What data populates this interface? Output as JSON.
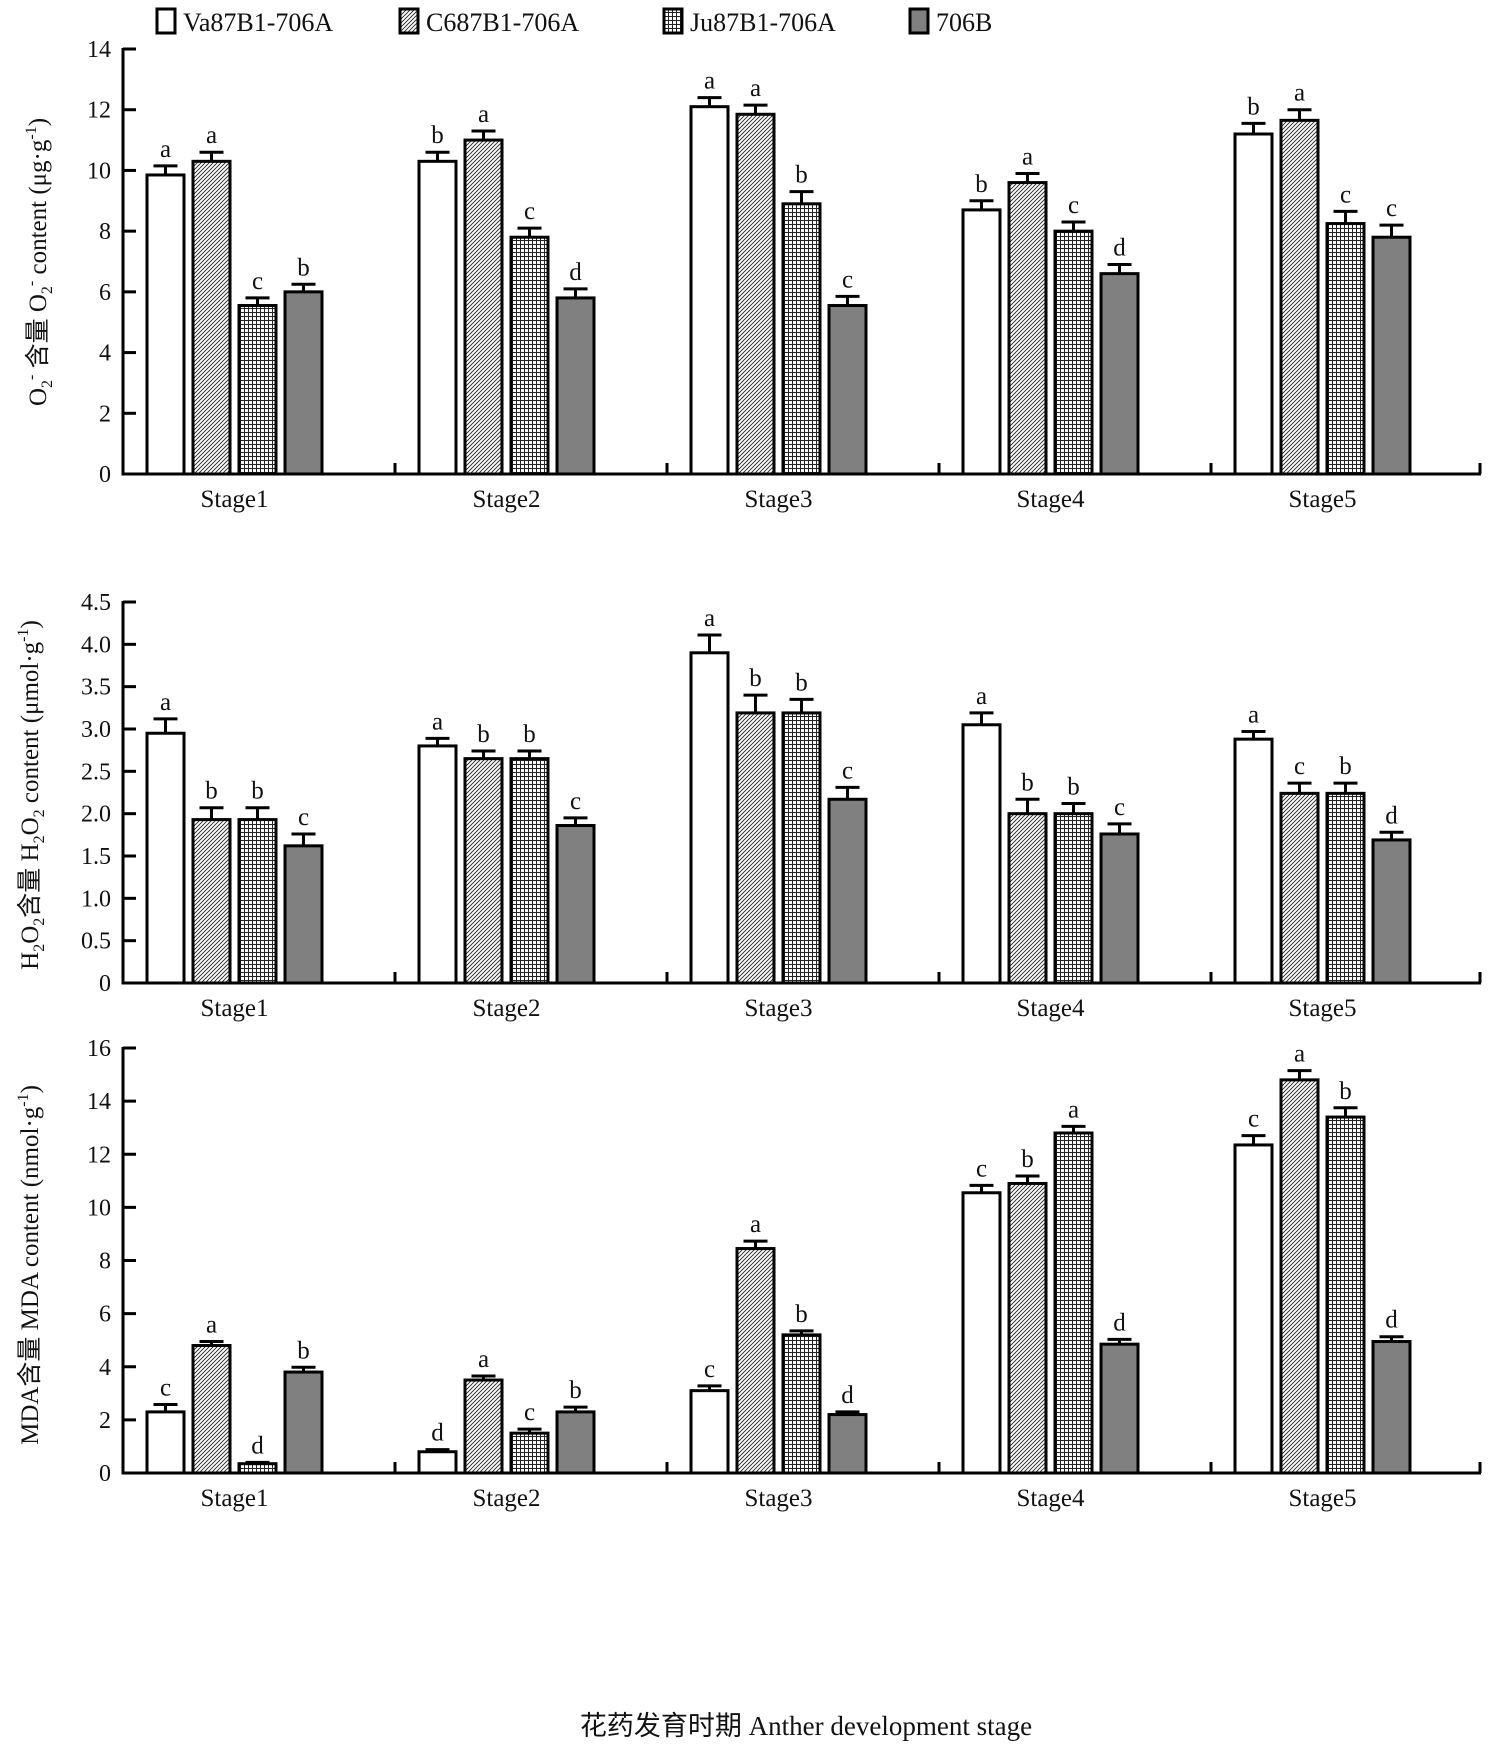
{
  "legend": [
    {
      "label": "Va87B1-706A",
      "pattern": "white"
    },
    {
      "label": "C687B1-706A",
      "pattern": "diagonal-hatch"
    },
    {
      "label": "Ju87B1-706A",
      "pattern": "grid"
    },
    {
      "label": "706B",
      "pattern": "gray",
      "color": "#808080"
    }
  ],
  "x_axis_title": "花药发育时期 Anther development stage",
  "chart_data": [
    {
      "type": "bar",
      "title": "",
      "ylabel": "O2- 含量 O2- content (μg·g-1)",
      "ylabel_parts": {
        "prefix": "O",
        "sub1": "2",
        "sup1": "-",
        "cn": " 含量 O",
        "sub2": "2",
        "sup2": "-",
        "rest": " content (μg·g",
        "sup3": "-1",
        "end": ")"
      },
      "ylim": [
        0,
        14
      ],
      "yticks": [
        0,
        2,
        4,
        6,
        8,
        10,
        12,
        14
      ],
      "ytick_labels": [
        "0",
        "2",
        "4",
        "6",
        "8",
        "10",
        "12",
        "14"
      ],
      "categories": [
        "Stage1",
        "Stage2",
        "Stage3",
        "Stage4",
        "Stage5"
      ],
      "series": [
        {
          "name": "Va87B1-706A",
          "values": [
            9.85,
            10.3,
            12.1,
            8.7,
            11.2
          ],
          "errors": [
            0.3,
            0.3,
            0.3,
            0.3,
            0.35
          ],
          "letters": [
            "a",
            "b",
            "a",
            "b",
            "b"
          ]
        },
        {
          "name": "C687B1-706A",
          "values": [
            10.3,
            11.0,
            11.85,
            9.6,
            11.65
          ],
          "errors": [
            0.3,
            0.3,
            0.3,
            0.3,
            0.35
          ],
          "letters": [
            "a",
            "a",
            "a",
            "a",
            "a"
          ]
        },
        {
          "name": "Ju87B1-706A",
          "values": [
            5.55,
            7.8,
            8.9,
            8.0,
            8.25
          ],
          "errors": [
            0.25,
            0.3,
            0.4,
            0.3,
            0.4
          ],
          "letters": [
            "c",
            "c",
            "b",
            "c",
            "c"
          ]
        },
        {
          "name": "706B",
          "values": [
            6.0,
            5.8,
            5.55,
            6.6,
            7.8
          ],
          "errors": [
            0.25,
            0.3,
            0.3,
            0.3,
            0.4
          ],
          "letters": [
            "b",
            "d",
            "c",
            "d",
            "c"
          ]
        }
      ]
    },
    {
      "type": "bar",
      "title": "",
      "ylabel": "H2O2 含量 H2O2 content (μmol·g-1)",
      "ylabel_parts": {
        "prefix": "H",
        "sub1": "2",
        "mid1": "O",
        "sub2": "2",
        "cn": "含量 H",
        "sub3": "2",
        "mid2": "O",
        "sub4": "2",
        "rest": " content (μmol·g",
        "sup": "-1",
        "end": ")"
      },
      "ylim": [
        0,
        4.5
      ],
      "yticks": [
        0,
        0.5,
        1.0,
        1.5,
        2.0,
        2.5,
        3.0,
        3.5,
        4.0,
        4.5
      ],
      "ytick_labels": [
        "0",
        "0.5",
        "1.0",
        "1.5",
        "2.0",
        "2.5",
        "3.0",
        "3.5",
        "4.0",
        "4.5"
      ],
      "categories": [
        "Stage1",
        "Stage2",
        "Stage3",
        "Stage4",
        "Stage5"
      ],
      "series": [
        {
          "name": "Va87B1-706A",
          "values": [
            2.95,
            2.8,
            3.9,
            3.05,
            2.88
          ],
          "errors": [
            0.17,
            0.09,
            0.21,
            0.14,
            0.09
          ],
          "letters": [
            "a",
            "a",
            "a",
            "a",
            "a"
          ]
        },
        {
          "name": "C687B1-706A",
          "values": [
            1.93,
            2.65,
            3.19,
            2.0,
            2.24
          ],
          "errors": [
            0.14,
            0.09,
            0.21,
            0.17,
            0.12
          ],
          "letters": [
            "b",
            "b",
            "b",
            "b",
            "c"
          ]
        },
        {
          "name": "Ju87B1-706A",
          "values": [
            1.93,
            2.65,
            3.19,
            2.0,
            2.24
          ],
          "errors": [
            0.14,
            0.09,
            0.16,
            0.12,
            0.12
          ],
          "letters": [
            "b",
            "b",
            "b",
            "b",
            "b"
          ]
        },
        {
          "name": "706B",
          "values": [
            1.62,
            1.86,
            2.17,
            1.76,
            1.69
          ],
          "errors": [
            0.14,
            0.09,
            0.14,
            0.12,
            0.09
          ],
          "letters": [
            "c",
            "c",
            "c",
            "c",
            "d"
          ]
        }
      ]
    },
    {
      "type": "bar",
      "title": "",
      "ylabel": "MDA含量 MDA content (nmol·g-1)",
      "ylabel_parts": {
        "text": "MDA含量 MDA content (nmol·g",
        "sup": "-1",
        "end": ")"
      },
      "ylim": [
        0,
        16
      ],
      "yticks": [
        0,
        2,
        4,
        6,
        8,
        10,
        12,
        14,
        16
      ],
      "ytick_labels": [
        "0",
        "2",
        "4",
        "6",
        "8",
        "10",
        "12",
        "14",
        "16"
      ],
      "categories": [
        "Stage1",
        "Stage2",
        "Stage3",
        "Stage4",
        "Stage5"
      ],
      "series": [
        {
          "name": "Va87B1-706A",
          "values": [
            2.3,
            0.8,
            3.1,
            10.55,
            12.35
          ],
          "errors": [
            0.28,
            0.08,
            0.18,
            0.28,
            0.35
          ],
          "letters": [
            "c",
            "d",
            "c",
            "c",
            "c"
          ]
        },
        {
          "name": "C687B1-706A",
          "values": [
            4.8,
            3.5,
            8.45,
            10.9,
            14.8
          ],
          "errors": [
            0.15,
            0.15,
            0.28,
            0.28,
            0.35
          ],
          "letters": [
            "a",
            "a",
            "a",
            "b",
            "a"
          ]
        },
        {
          "name": "Ju87B1-706A",
          "values": [
            0.35,
            1.5,
            5.2,
            12.8,
            13.4
          ],
          "errors": [
            0.05,
            0.15,
            0.15,
            0.25,
            0.35
          ],
          "letters": [
            "d",
            "c",
            "b",
            "a",
            "b"
          ]
        },
        {
          "name": "706B",
          "values": [
            3.8,
            2.3,
            2.2,
            4.85,
            4.95
          ],
          "errors": [
            0.18,
            0.18,
            0.1,
            0.18,
            0.18
          ],
          "letters": [
            "b",
            "b",
            "d",
            "d",
            "d"
          ]
        }
      ]
    }
  ]
}
